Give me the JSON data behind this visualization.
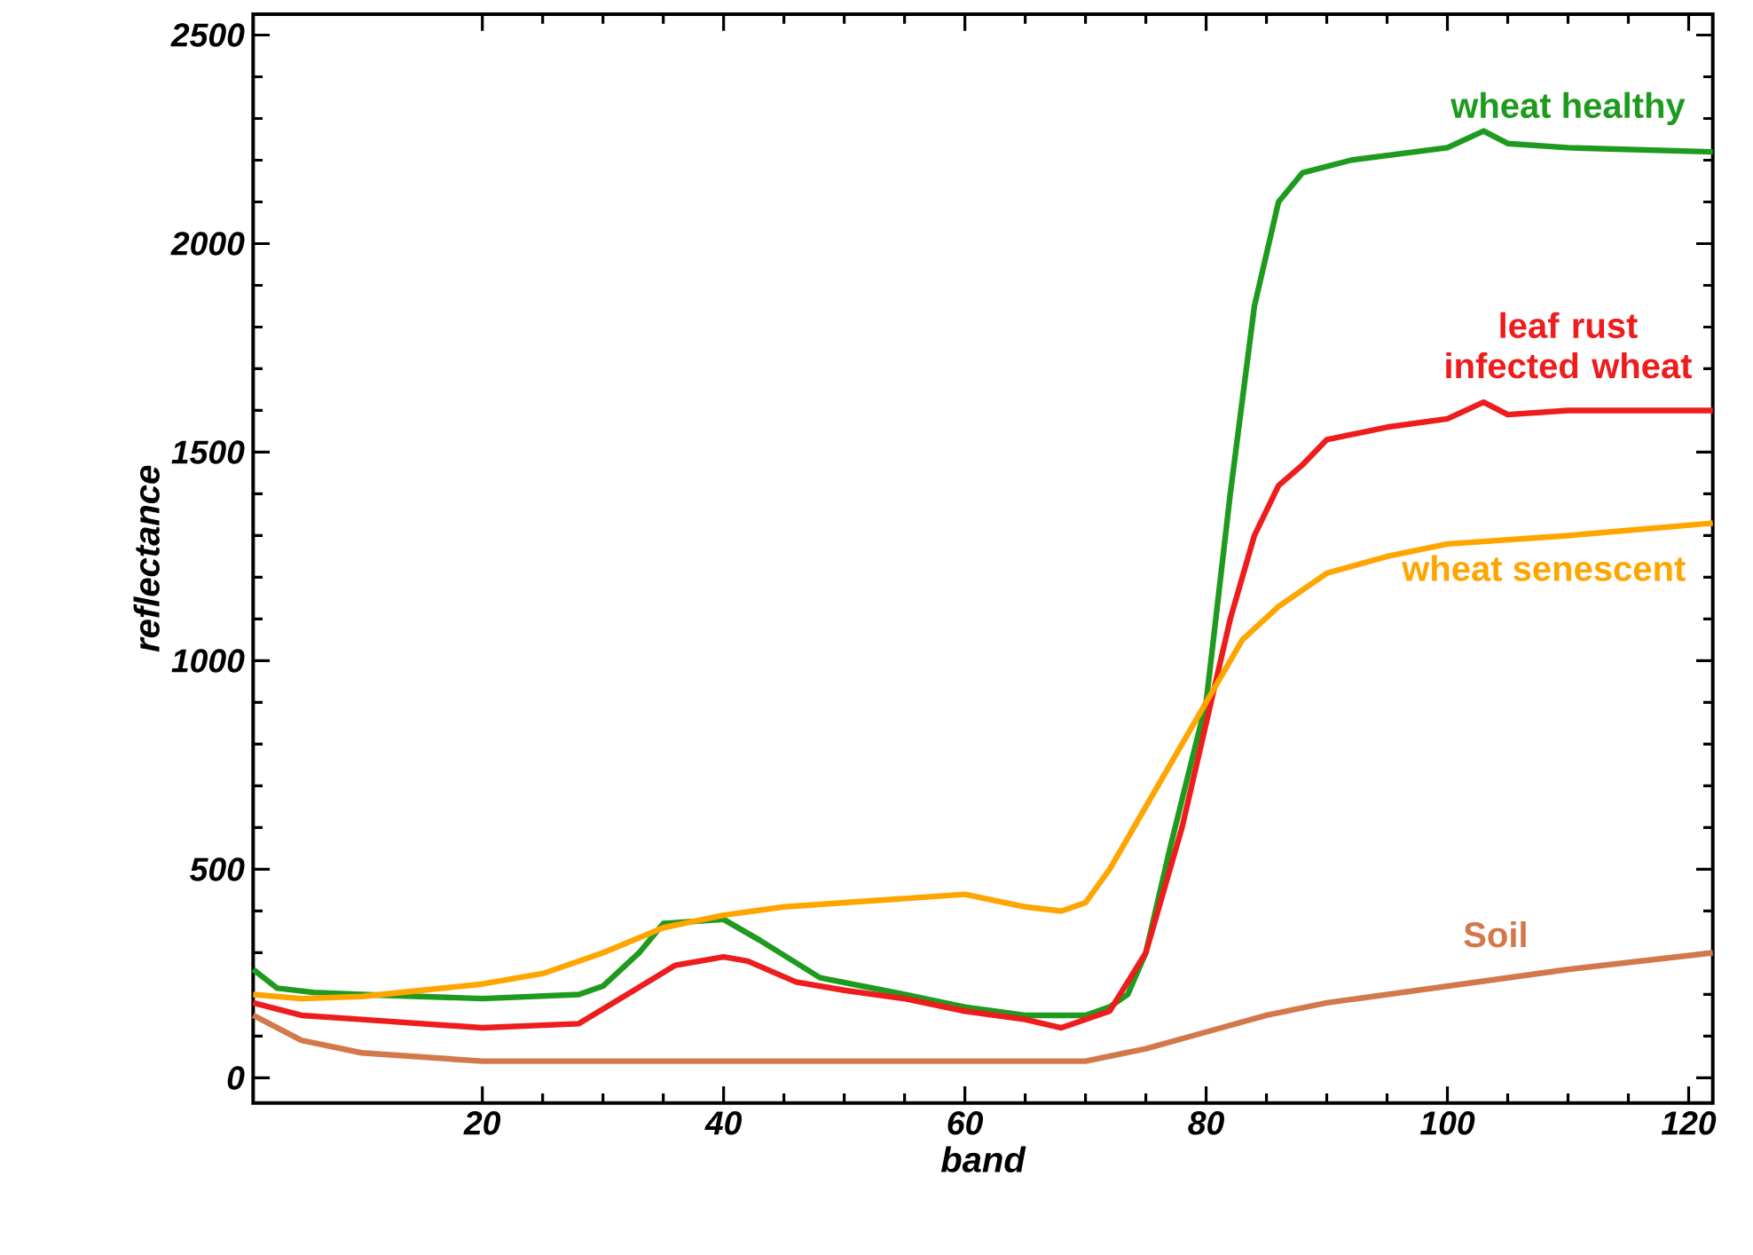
{
  "chart_data": {
    "type": "line",
    "xlabel": "band",
    "ylabel": "reflectance",
    "xlim": [
      1,
      122
    ],
    "ylim": [
      -60,
      2550
    ],
    "xticks": [
      20,
      40,
      60,
      80,
      100,
      120
    ],
    "yticks": [
      0,
      500,
      1000,
      1500,
      2000,
      2500
    ],
    "grid": false,
    "line_style": "solid",
    "series": [
      {
        "name": "wheat healthy",
        "color": "#1e9a1e",
        "x": [
          1,
          3,
          6,
          10,
          20,
          28,
          30,
          33,
          35,
          40,
          43,
          48,
          55,
          60,
          65,
          70,
          72,
          73.5,
          75,
          77,
          80,
          82,
          84,
          86,
          88,
          92,
          100,
          103,
          105,
          110,
          122
        ],
        "values": [
          260,
          215,
          205,
          200,
          190,
          200,
          220,
          300,
          370,
          380,
          330,
          240,
          200,
          170,
          150,
          150,
          170,
          200,
          300,
          550,
          900,
          1400,
          1850,
          2100,
          2170,
          2200,
          2230,
          2270,
          2240,
          2230,
          2220
        ]
      },
      {
        "name": "leaf rust infected wheat",
        "color": "#ee1c1c",
        "x": [
          1,
          5,
          10,
          20,
          28,
          32,
          36,
          40,
          42,
          46,
          50,
          55,
          60,
          65,
          68,
          72,
          75,
          78,
          80,
          82,
          84,
          86,
          88,
          90,
          95,
          100,
          103,
          105,
          110,
          122
        ],
        "values": [
          180,
          150,
          140,
          120,
          130,
          200,
          270,
          290,
          280,
          230,
          210,
          190,
          160,
          140,
          120,
          160,
          300,
          600,
          850,
          1100,
          1300,
          1420,
          1470,
          1530,
          1560,
          1580,
          1620,
          1590,
          1600,
          1600
        ]
      },
      {
        "name": "wheat senescent",
        "color": "#ffa500",
        "x": [
          1,
          5,
          10,
          15,
          20,
          25,
          30,
          35,
          40,
          45,
          50,
          55,
          60,
          65,
          68,
          70,
          72,
          75,
          78,
          80,
          83,
          86,
          90,
          95,
          100,
          110,
          122
        ],
        "values": [
          200,
          190,
          195,
          210,
          225,
          250,
          300,
          360,
          390,
          410,
          420,
          430,
          440,
          410,
          400,
          420,
          500,
          650,
          800,
          900,
          1050,
          1130,
          1210,
          1250,
          1280,
          1300,
          1330
        ]
      },
      {
        "name": "Soil",
        "color": "#d2784a",
        "x": [
          1,
          5,
          10,
          20,
          30,
          70,
          75,
          80,
          85,
          90,
          100,
          110,
          122
        ],
        "values": [
          150,
          90,
          60,
          40,
          40,
          40,
          70,
          110,
          150,
          180,
          220,
          260,
          300
        ]
      }
    ]
  }
}
